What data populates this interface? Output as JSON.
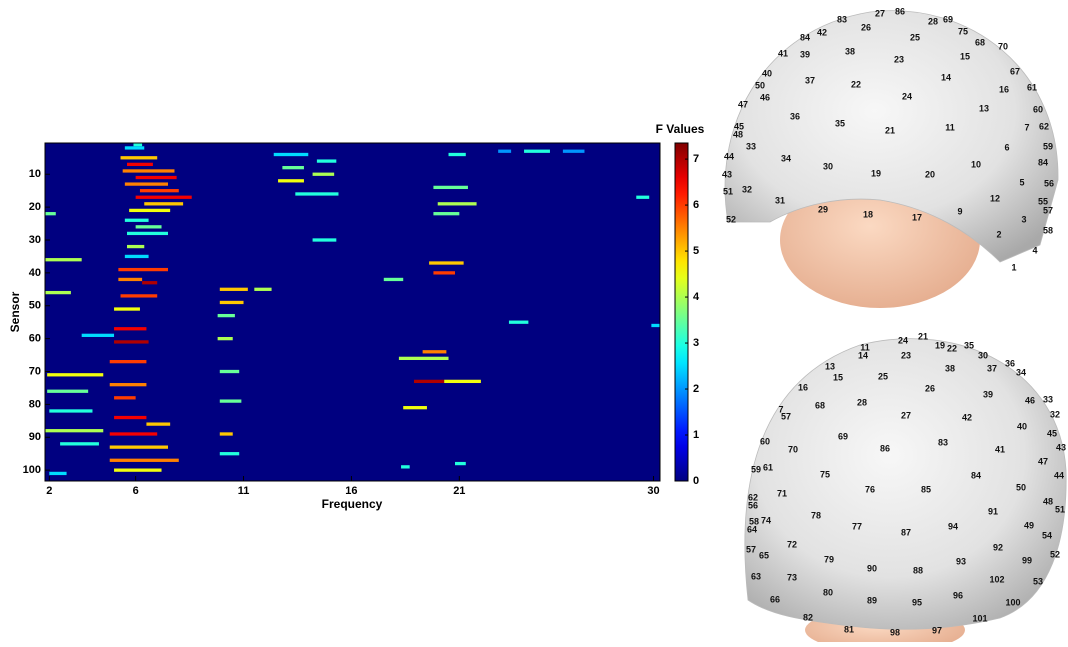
{
  "chart_data": {
    "type": "heatmap",
    "x_label": "Frequency",
    "y_label": "Sensor",
    "colorbar_label": "F Values",
    "xlim": [
      1.8,
      30.3
    ],
    "xticks": [
      2,
      6,
      11,
      16,
      21,
      30
    ],
    "ylim": [
      0.5,
      103.3
    ],
    "yticks": [
      10,
      20,
      30,
      40,
      50,
      60,
      70,
      80,
      90,
      100
    ],
    "y_inverted": true,
    "zlim": [
      0,
      7.35
    ],
    "zticks": [
      0,
      1,
      2,
      3,
      4,
      5,
      6,
      7
    ],
    "colormap": "jet",
    "cells": [
      {
        "sensor": 1,
        "from": 5.9,
        "to": 6.3,
        "value": 3
      },
      {
        "sensor": 2,
        "from": 5.5,
        "to": 6.4,
        "value": 2.5
      },
      {
        "sensor": 3,
        "from": 22.8,
        "to": 23.4,
        "value": 2
      },
      {
        "sensor": 3,
        "from": 24.0,
        "to": 25.2,
        "value": 3
      },
      {
        "sensor": 3,
        "from": 25.8,
        "to": 26.8,
        "value": 2
      },
      {
        "sensor": 4,
        "from": 12.4,
        "to": 14.0,
        "value": 2.5
      },
      {
        "sensor": 4,
        "from": 20.5,
        "to": 21.3,
        "value": 3
      },
      {
        "sensor": 5,
        "from": 5.3,
        "to": 7.0,
        "value": 5
      },
      {
        "sensor": 6,
        "from": 14.4,
        "to": 15.3,
        "value": 3
      },
      {
        "sensor": 7,
        "from": 5.6,
        "to": 6.8,
        "value": 6.5
      },
      {
        "sensor": 8,
        "from": 12.8,
        "to": 13.8,
        "value": 3.5
      },
      {
        "sensor": 9,
        "from": 5.4,
        "to": 7.8,
        "value": 5.5
      },
      {
        "sensor": 10,
        "from": 14.2,
        "to": 15.2,
        "value": 4
      },
      {
        "sensor": 11,
        "from": 6.0,
        "to": 7.9,
        "value": 6.5
      },
      {
        "sensor": 12,
        "from": 12.6,
        "to": 13.8,
        "value": 4.5
      },
      {
        "sensor": 13,
        "from": 5.5,
        "to": 7.5,
        "value": 5.5
      },
      {
        "sensor": 14,
        "from": 19.8,
        "to": 21.4,
        "value": 3.5
      },
      {
        "sensor": 15,
        "from": 6.2,
        "to": 8.0,
        "value": 6
      },
      {
        "sensor": 16,
        "from": 13.4,
        "to": 15.4,
        "value": 3
      },
      {
        "sensor": 17,
        "from": 29.2,
        "to": 29.8,
        "value": 3
      },
      {
        "sensor": 17,
        "from": 6.0,
        "to": 8.6,
        "value": 6.5
      },
      {
        "sensor": 19,
        "from": 6.4,
        "to": 8.2,
        "value": 5
      },
      {
        "sensor": 19,
        "from": 20.0,
        "to": 21.8,
        "value": 4
      },
      {
        "sensor": 21,
        "from": 5.7,
        "to": 7.6,
        "value": 4.5
      },
      {
        "sensor": 22,
        "from": 1.8,
        "to": 2.3,
        "value": 3.5
      },
      {
        "sensor": 22,
        "from": 19.8,
        "to": 21.0,
        "value": 3.5
      },
      {
        "sensor": 24,
        "from": 5.5,
        "to": 6.6,
        "value": 3
      },
      {
        "sensor": 26,
        "from": 6.0,
        "to": 7.2,
        "value": 3.5
      },
      {
        "sensor": 28,
        "from": 5.6,
        "to": 7.5,
        "value": 3
      },
      {
        "sensor": 30,
        "from": 14.2,
        "to": 15.3,
        "value": 3
      },
      {
        "sensor": 32,
        "from": 5.6,
        "to": 6.4,
        "value": 4
      },
      {
        "sensor": 35,
        "from": 5.5,
        "to": 6.6,
        "value": 2.5
      },
      {
        "sensor": 36,
        "from": 1.8,
        "to": 3.5,
        "value": 4
      },
      {
        "sensor": 37,
        "from": 19.6,
        "to": 21.2,
        "value": 5
      },
      {
        "sensor": 39,
        "from": 5.2,
        "to": 7.5,
        "value": 6
      },
      {
        "sensor": 40,
        "from": 19.8,
        "to": 20.8,
        "value": 6
      },
      {
        "sensor": 42,
        "from": 5.2,
        "to": 6.3,
        "value": 5.5
      },
      {
        "sensor": 42,
        "from": 17.5,
        "to": 18.4,
        "value": 3.5
      },
      {
        "sensor": 43,
        "from": 6.3,
        "to": 7.0,
        "value": 7
      },
      {
        "sensor": 45,
        "from": 9.9,
        "to": 11.2,
        "value": 5
      },
      {
        "sensor": 45,
        "from": 11.5,
        "to": 12.3,
        "value": 4
      },
      {
        "sensor": 46,
        "from": 1.8,
        "to": 3.0,
        "value": 4
      },
      {
        "sensor": 47,
        "from": 5.3,
        "to": 7.0,
        "value": 6
      },
      {
        "sensor": 49,
        "from": 9.9,
        "to": 11.0,
        "value": 5
      },
      {
        "sensor": 51,
        "from": 5.0,
        "to": 6.2,
        "value": 4.5
      },
      {
        "sensor": 53,
        "from": 9.8,
        "to": 10.6,
        "value": 3.5
      },
      {
        "sensor": 55,
        "from": 23.3,
        "to": 24.2,
        "value": 3
      },
      {
        "sensor": 56,
        "from": 29.9,
        "to": 30.3,
        "value": 2.5
      },
      {
        "sensor": 57,
        "from": 5.0,
        "to": 6.5,
        "value": 6.5
      },
      {
        "sensor": 59,
        "from": 3.5,
        "to": 5.0,
        "value": 2.5
      },
      {
        "sensor": 60,
        "from": 9.8,
        "to": 10.5,
        "value": 4
      },
      {
        "sensor": 61,
        "from": 5.0,
        "to": 6.6,
        "value": 7
      },
      {
        "sensor": 64,
        "from": 19.3,
        "to": 20.4,
        "value": 5.5
      },
      {
        "sensor": 66,
        "from": 18.2,
        "to": 20.5,
        "value": 4
      },
      {
        "sensor": 67,
        "from": 4.8,
        "to": 6.5,
        "value": 6
      },
      {
        "sensor": 70,
        "from": 9.9,
        "to": 10.8,
        "value": 3.5
      },
      {
        "sensor": 71,
        "from": 1.9,
        "to": 4.5,
        "value": 4.5
      },
      {
        "sensor": 73,
        "from": 18.9,
        "to": 20.3,
        "value": 7
      },
      {
        "sensor": 73,
        "from": 20.3,
        "to": 22.0,
        "value": 4.5
      },
      {
        "sensor": 74,
        "from": 4.8,
        "to": 6.5,
        "value": 5.5
      },
      {
        "sensor": 76,
        "from": 1.9,
        "to": 3.8,
        "value": 3.5
      },
      {
        "sensor": 78,
        "from": 5.0,
        "to": 6.0,
        "value": 6
      },
      {
        "sensor": 79,
        "from": 9.9,
        "to": 10.9,
        "value": 3.5
      },
      {
        "sensor": 81,
        "from": 18.4,
        "to": 19.5,
        "value": 4.5
      },
      {
        "sensor": 82,
        "from": 2.0,
        "to": 4.0,
        "value": 3
      },
      {
        "sensor": 84,
        "from": 5.0,
        "to": 6.5,
        "value": 6.5
      },
      {
        "sensor": 86,
        "from": 6.5,
        "to": 7.6,
        "value": 5
      },
      {
        "sensor": 88,
        "from": 1.8,
        "to": 4.5,
        "value": 4
      },
      {
        "sensor": 89,
        "from": 4.8,
        "to": 7.0,
        "value": 6.5
      },
      {
        "sensor": 89,
        "from": 9.9,
        "to": 10.5,
        "value": 5
      },
      {
        "sensor": 92,
        "from": 2.5,
        "to": 4.3,
        "value": 3
      },
      {
        "sensor": 93,
        "from": 4.8,
        "to": 7.5,
        "value": 5
      },
      {
        "sensor": 95,
        "from": 9.9,
        "to": 10.8,
        "value": 3
      },
      {
        "sensor": 97,
        "from": 4.8,
        "to": 8.0,
        "value": 5.5
      },
      {
        "sensor": 98,
        "from": 20.8,
        "to": 21.3,
        "value": 3
      },
      {
        "sensor": 99,
        "from": 18.3,
        "to": 18.7,
        "value": 3
      },
      {
        "sensor": 100,
        "from": 5.0,
        "to": 7.2,
        "value": 4.5
      },
      {
        "sensor": 101,
        "from": 2.0,
        "to": 2.8,
        "value": 2.5
      }
    ]
  },
  "sensor_layout": {
    "top_view": [
      "27",
      "86",
      "83",
      "26",
      "28",
      "69",
      "84",
      "42",
      "25",
      "75",
      "68",
      "70",
      "41",
      "39",
      "38",
      "23",
      "15",
      "40",
      "67",
      "50",
      "37",
      "22",
      "14",
      "16",
      "61",
      "46",
      "24",
      "47",
      "60",
      "36",
      "13",
      "45",
      "35",
      "21",
      "11",
      "7",
      "62",
      "48",
      "59",
      "33",
      "6",
      "44",
      "34",
      "30",
      "19",
      "20",
      "10",
      "84",
      "43",
      "5",
      "56",
      "51",
      "32",
      "12",
      "55",
      "57",
      "31",
      "29",
      "18",
      "17",
      "9",
      "3",
      "58",
      "52",
      "2",
      "4",
      "1"
    ],
    "bottom_view": [
      "11",
      "24",
      "21",
      "19",
      "22",
      "35",
      "30",
      "23",
      "36",
      "37",
      "34",
      "13",
      "14",
      "38",
      "15",
      "25",
      "16",
      "26",
      "39",
      "46",
      "33",
      "28",
      "68",
      "7",
      "57",
      "27",
      "42",
      "32",
      "40",
      "45",
      "43",
      "69",
      "60",
      "70",
      "86",
      "83",
      "41",
      "47",
      "44",
      "59",
      "61",
      "75",
      "84",
      "76",
      "85",
      "50",
      "48",
      "51",
      "62",
      "56",
      "71",
      "91",
      "78",
      "77",
      "94",
      "87",
      "49",
      "54",
      "58",
      "74",
      "64",
      "72",
      "92",
      "99",
      "52",
      "57",
      "65",
      "79",
      "90",
      "88",
      "93",
      "63",
      "73",
      "102",
      "53",
      "80",
      "89",
      "95",
      "96",
      "100",
      "66",
      "82",
      "101",
      "81",
      "98",
      "97"
    ]
  }
}
